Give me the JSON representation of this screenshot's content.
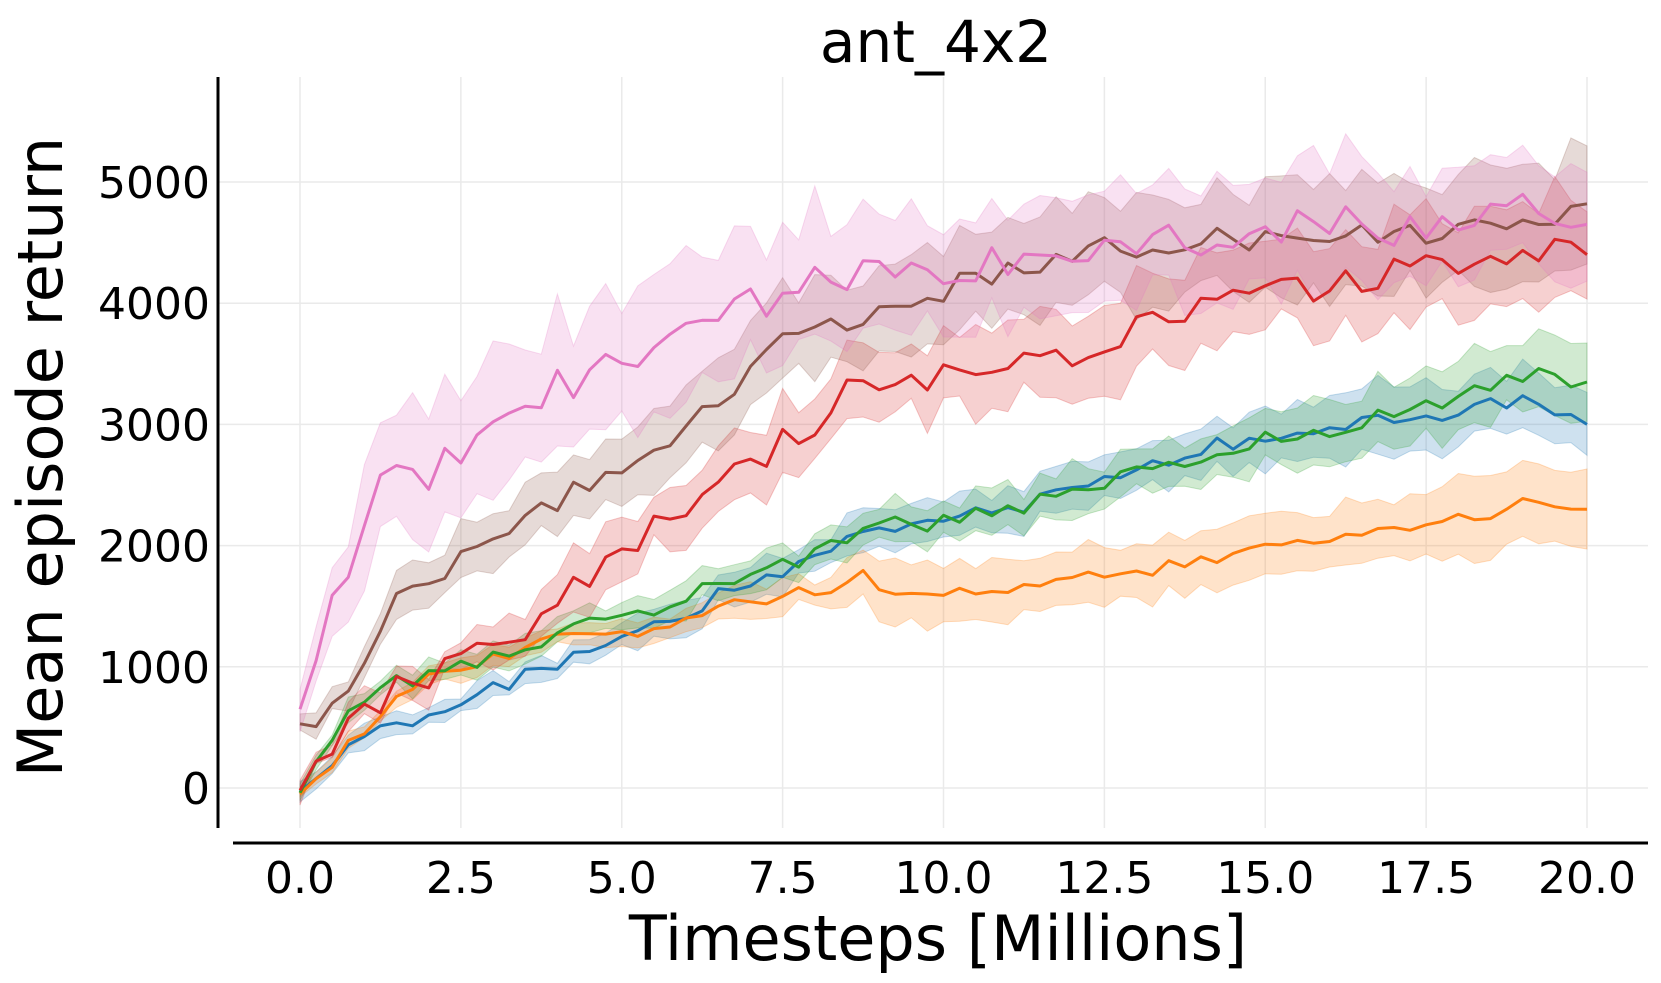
{
  "chart_data": {
    "type": "line",
    "title": "ant_4x2",
    "xlabel": "Timesteps [Millions]",
    "ylabel": "Mean episode return",
    "xlim": [
      -0.5,
      20.5
    ],
    "ylim": [
      -350,
      5850
    ],
    "xticks": [
      0.0,
      2.5,
      5.0,
      7.5,
      10.0,
      12.5,
      15.0,
      17.5,
      20.0
    ],
    "xtick_labels": [
      "0.0",
      "2.5",
      "5.0",
      "7.5",
      "10.0",
      "12.5",
      "15.0",
      "17.5",
      "20.0"
    ],
    "yticks": [
      0,
      1000,
      2000,
      3000,
      4000,
      5000
    ],
    "ytick_labels": [
      "0",
      "1000",
      "2000",
      "3000",
      "4000",
      "5000"
    ],
    "grid": true,
    "legend": "none",
    "x_step": 0.25,
    "series": [
      {
        "color": "#1f77b4",
        "anchors": [
          [
            0,
            -30
          ],
          [
            0.5,
            230
          ],
          [
            1,
            400
          ],
          [
            2,
            610
          ],
          [
            3,
            800
          ],
          [
            4,
            1030
          ],
          [
            5,
            1230
          ],
          [
            6,
            1470
          ],
          [
            7,
            1700
          ],
          [
            8,
            1870
          ],
          [
            8.75,
            2150
          ],
          [
            10,
            2200
          ],
          [
            11,
            2300
          ],
          [
            12,
            2450
          ],
          [
            13,
            2650
          ],
          [
            14,
            2800
          ],
          [
            15,
            2930
          ],
          [
            16,
            2970
          ],
          [
            17,
            3080
          ],
          [
            18,
            3090
          ],
          [
            19,
            3200
          ],
          [
            20,
            3000
          ]
        ],
        "band": [
          [
            0,
            60
          ],
          [
            1,
            80
          ],
          [
            3,
            90
          ],
          [
            5,
            110
          ],
          [
            7,
            140
          ],
          [
            9,
            150
          ],
          [
            11,
            160
          ],
          [
            13,
            190
          ],
          [
            15,
            220
          ],
          [
            17,
            260
          ],
          [
            19,
            280
          ],
          [
            20,
            270
          ]
        ],
        "noise": 70
      },
      {
        "color": "#ff7f0e",
        "anchors": [
          [
            0,
            -50
          ],
          [
            0.5,
            200
          ],
          [
            1,
            500
          ],
          [
            1.5,
            720
          ],
          [
            2,
            880
          ],
          [
            3,
            1060
          ],
          [
            4,
            1220
          ],
          [
            5,
            1280
          ],
          [
            6,
            1380
          ],
          [
            7,
            1550
          ],
          [
            8,
            1620
          ],
          [
            8.75,
            1760
          ],
          [
            9.2,
            1540
          ],
          [
            10,
            1570
          ],
          [
            11,
            1660
          ],
          [
            12,
            1700
          ],
          [
            13,
            1790
          ],
          [
            14,
            1880
          ],
          [
            15,
            1960
          ],
          [
            16,
            2040
          ],
          [
            17,
            2130
          ],
          [
            18,
            2200
          ],
          [
            19,
            2330
          ],
          [
            20,
            2300
          ]
        ],
        "band": [
          [
            0,
            50
          ],
          [
            2,
            70
          ],
          [
            5,
            90
          ],
          [
            8,
            130
          ],
          [
            9,
            260
          ],
          [
            10,
            240
          ],
          [
            12,
            230
          ],
          [
            15,
            240
          ],
          [
            18,
            280
          ],
          [
            20,
            330
          ]
        ],
        "noise": 60
      },
      {
        "color": "#2ca02c",
        "anchors": [
          [
            0,
            -40
          ],
          [
            0.5,
            420
          ],
          [
            1,
            720
          ],
          [
            1.5,
            870
          ],
          [
            2,
            960
          ],
          [
            3,
            1080
          ],
          [
            4,
            1250
          ],
          [
            5,
            1420
          ],
          [
            6,
            1560
          ],
          [
            7,
            1760
          ],
          [
            8,
            1940
          ],
          [
            8.75,
            2170
          ],
          [
            10,
            2200
          ],
          [
            11,
            2310
          ],
          [
            12,
            2400
          ],
          [
            13,
            2620
          ],
          [
            14,
            2720
          ],
          [
            15,
            2880
          ],
          [
            16,
            2920
          ],
          [
            17,
            3100
          ],
          [
            18,
            3220
          ],
          [
            19,
            3400
          ],
          [
            20,
            3350
          ]
        ],
        "band": [
          [
            0,
            60
          ],
          [
            2,
            90
          ],
          [
            5,
            110
          ],
          [
            8,
            150
          ],
          [
            10,
            160
          ],
          [
            13,
            200
          ],
          [
            16,
            250
          ],
          [
            18,
            280
          ],
          [
            20,
            300
          ]
        ],
        "noise": 80
      },
      {
        "color": "#d62728",
        "anchors": [
          [
            0,
            -20
          ],
          [
            0.5,
            300
          ],
          [
            1,
            620
          ],
          [
            1.5,
            820
          ],
          [
            2,
            920
          ],
          [
            3,
            1150
          ],
          [
            4,
            1520
          ],
          [
            5,
            1980
          ],
          [
            6,
            2350
          ],
          [
            7,
            2680
          ],
          [
            8,
            3000
          ],
          [
            8.5,
            3300
          ],
          [
            9,
            3250
          ],
          [
            10,
            3380
          ],
          [
            11,
            3550
          ],
          [
            12,
            3600
          ],
          [
            13,
            3800
          ],
          [
            14,
            3950
          ],
          [
            15,
            4080
          ],
          [
            16,
            4150
          ],
          [
            17,
            4270
          ],
          [
            18,
            4330
          ],
          [
            19,
            4450
          ],
          [
            20,
            4400
          ]
        ],
        "band": [
          [
            0,
            60
          ],
          [
            2,
            120
          ],
          [
            4,
            200
          ],
          [
            6,
            260
          ],
          [
            8,
            300
          ],
          [
            10,
            300
          ],
          [
            12,
            330
          ],
          [
            14,
            350
          ],
          [
            16,
            380
          ],
          [
            18,
            400
          ],
          [
            20,
            420
          ]
        ],
        "noise": 120
      },
      {
        "color": "#8c564b",
        "anchors": [
          [
            0,
            530
          ],
          [
            0.5,
            700
          ],
          [
            1,
            1100
          ],
          [
            1.5,
            1500
          ],
          [
            2,
            1650
          ],
          [
            3,
            2050
          ],
          [
            4,
            2350
          ],
          [
            5,
            2620
          ],
          [
            6,
            2930
          ],
          [
            7,
            3420
          ],
          [
            7.5,
            3800
          ],
          [
            8.5,
            3780
          ],
          [
            9,
            3920
          ],
          [
            10,
            4100
          ],
          [
            11,
            4300
          ],
          [
            12,
            4430
          ],
          [
            13,
            4480
          ],
          [
            14,
            4500
          ],
          [
            15,
            4550
          ],
          [
            16,
            4570
          ],
          [
            17,
            4590
          ],
          [
            18,
            4600
          ],
          [
            19,
            4650
          ],
          [
            20,
            4820
          ]
        ],
        "band": [
          [
            0,
            80
          ],
          [
            2,
            180
          ],
          [
            4,
            260
          ],
          [
            6,
            330
          ],
          [
            8,
            370
          ],
          [
            10,
            380
          ],
          [
            12,
            400
          ],
          [
            14,
            420
          ],
          [
            16,
            430
          ],
          [
            18,
            440
          ],
          [
            20,
            520
          ]
        ],
        "noise": 110
      },
      {
        "color": "#e377c2",
        "anchors": [
          [
            0,
            650
          ],
          [
            0.4,
            1450
          ],
          [
            1,
            2150
          ],
          [
            1.5,
            2800
          ],
          [
            2,
            2550
          ],
          [
            3,
            3050
          ],
          [
            4,
            3300
          ],
          [
            5,
            3550
          ],
          [
            6,
            3850
          ],
          [
            7,
            4000
          ],
          [
            8,
            4150
          ],
          [
            9,
            4250
          ],
          [
            10,
            4230
          ],
          [
            11,
            4340
          ],
          [
            12,
            4430
          ],
          [
            13,
            4490
          ],
          [
            14,
            4540
          ],
          [
            15,
            4600
          ],
          [
            16,
            4680
          ],
          [
            17,
            4590
          ],
          [
            18,
            4660
          ],
          [
            19,
            4780
          ],
          [
            20,
            4650
          ]
        ],
        "band": [
          [
            0,
            150
          ],
          [
            1,
            450
          ],
          [
            2,
            500
          ],
          [
            4,
            520
          ],
          [
            6,
            560
          ],
          [
            8,
            520
          ],
          [
            10,
            460
          ],
          [
            12,
            450
          ],
          [
            14,
            460
          ],
          [
            16,
            480
          ],
          [
            18,
            450
          ],
          [
            20,
            460
          ]
        ],
        "noise": 150
      }
    ]
  }
}
